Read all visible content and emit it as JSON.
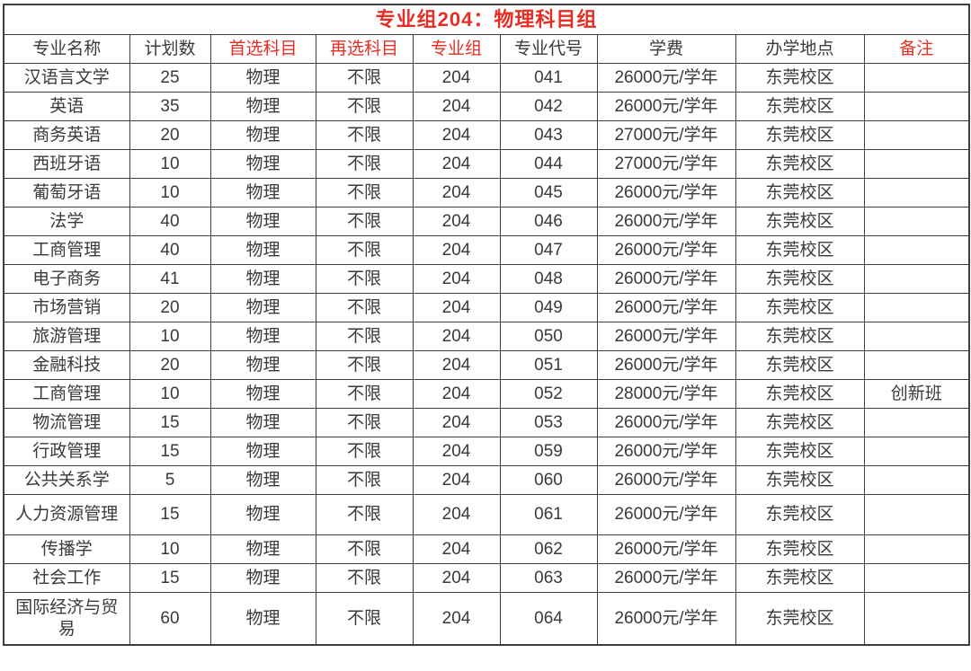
{
  "colors": {
    "accent_red": "#e62e24",
    "text": "#3a3a3a",
    "border": "#3e3e3e"
  },
  "table": {
    "title": "专业组204：物理科目组",
    "columns": [
      {
        "key": "major",
        "label": "专业名称",
        "red": false
      },
      {
        "key": "plan",
        "label": "计划数",
        "red": false
      },
      {
        "key": "first_subject",
        "label": "首选科目",
        "red": true
      },
      {
        "key": "second_subject",
        "label": "再选科目",
        "red": true
      },
      {
        "key": "group",
        "label": "专业组",
        "red": true
      },
      {
        "key": "code",
        "label": "专业代号",
        "red": false
      },
      {
        "key": "tuition",
        "label": "学费",
        "red": false
      },
      {
        "key": "location",
        "label": "办学地点",
        "red": false
      },
      {
        "key": "remark",
        "label": "备注",
        "red": true
      }
    ],
    "rows": [
      {
        "major": "汉语言文学",
        "plan": "25",
        "first_subject": "物理",
        "second_subject": "不限",
        "group": "204",
        "code": "041",
        "tuition": "26000元/学年",
        "location": "东莞校区",
        "remark": ""
      },
      {
        "major": "英语",
        "plan": "35",
        "first_subject": "物理",
        "second_subject": "不限",
        "group": "204",
        "code": "042",
        "tuition": "26000元/学年",
        "location": "东莞校区",
        "remark": ""
      },
      {
        "major": "商务英语",
        "plan": "20",
        "first_subject": "物理",
        "second_subject": "不限",
        "group": "204",
        "code": "043",
        "tuition": "27000元/学年",
        "location": "东莞校区",
        "remark": ""
      },
      {
        "major": "西班牙语",
        "plan": "10",
        "first_subject": "物理",
        "second_subject": "不限",
        "group": "204",
        "code": "044",
        "tuition": "27000元/学年",
        "location": "东莞校区",
        "remark": ""
      },
      {
        "major": "葡萄牙语",
        "plan": "10",
        "first_subject": "物理",
        "second_subject": "不限",
        "group": "204",
        "code": "045",
        "tuition": "26000元/学年",
        "location": "东莞校区",
        "remark": ""
      },
      {
        "major": "法学",
        "plan": "40",
        "first_subject": "物理",
        "second_subject": "不限",
        "group": "204",
        "code": "046",
        "tuition": "26000元/学年",
        "location": "东莞校区",
        "remark": ""
      },
      {
        "major": "工商管理",
        "plan": "40",
        "first_subject": "物理",
        "second_subject": "不限",
        "group": "204",
        "code": "047",
        "tuition": "26000元/学年",
        "location": "东莞校区",
        "remark": ""
      },
      {
        "major": "电子商务",
        "plan": "41",
        "first_subject": "物理",
        "second_subject": "不限",
        "group": "204",
        "code": "048",
        "tuition": "26000元/学年",
        "location": "东莞校区",
        "remark": ""
      },
      {
        "major": "市场营销",
        "plan": "20",
        "first_subject": "物理",
        "second_subject": "不限",
        "group": "204",
        "code": "049",
        "tuition": "26000元/学年",
        "location": "东莞校区",
        "remark": ""
      },
      {
        "major": "旅游管理",
        "plan": "10",
        "first_subject": "物理",
        "second_subject": "不限",
        "group": "204",
        "code": "050",
        "tuition": "26000元/学年",
        "location": "东莞校区",
        "remark": ""
      },
      {
        "major": "金融科技",
        "plan": "20",
        "first_subject": "物理",
        "second_subject": "不限",
        "group": "204",
        "code": "051",
        "tuition": "26000元/学年",
        "location": "东莞校区",
        "remark": ""
      },
      {
        "major": "工商管理",
        "plan": "10",
        "first_subject": "物理",
        "second_subject": "不限",
        "group": "204",
        "code": "052",
        "tuition": "28000元/学年",
        "location": "东莞校区",
        "remark": "创新班"
      },
      {
        "major": "物流管理",
        "plan": "15",
        "first_subject": "物理",
        "second_subject": "不限",
        "group": "204",
        "code": "053",
        "tuition": "26000元/学年",
        "location": "东莞校区",
        "remark": ""
      },
      {
        "major": "行政管理",
        "plan": "15",
        "first_subject": "物理",
        "second_subject": "不限",
        "group": "204",
        "code": "059",
        "tuition": "26000元/学年",
        "location": "东莞校区",
        "remark": ""
      },
      {
        "major": "公共关系学",
        "plan": "5",
        "first_subject": "物理",
        "second_subject": "不限",
        "group": "204",
        "code": "060",
        "tuition": "26000元/学年",
        "location": "东莞校区",
        "remark": ""
      },
      {
        "major": "人力资源管理",
        "plan": "15",
        "first_subject": "物理",
        "second_subject": "不限",
        "group": "204",
        "code": "061",
        "tuition": "26000元/学年",
        "location": "东莞校区",
        "remark": ""
      },
      {
        "major": "传播学",
        "plan": "10",
        "first_subject": "物理",
        "second_subject": "不限",
        "group": "204",
        "code": "062",
        "tuition": "26000元/学年",
        "location": "东莞校区",
        "remark": ""
      },
      {
        "major": "社会工作",
        "plan": "15",
        "first_subject": "物理",
        "second_subject": "不限",
        "group": "204",
        "code": "063",
        "tuition": "26000元/学年",
        "location": "东莞校区",
        "remark": ""
      },
      {
        "major": "国际经济与贸易",
        "plan": "60",
        "first_subject": "物理",
        "second_subject": "不限",
        "group": "204",
        "code": "064",
        "tuition": "26000元/学年",
        "location": "东莞校区",
        "remark": ""
      }
    ]
  }
}
